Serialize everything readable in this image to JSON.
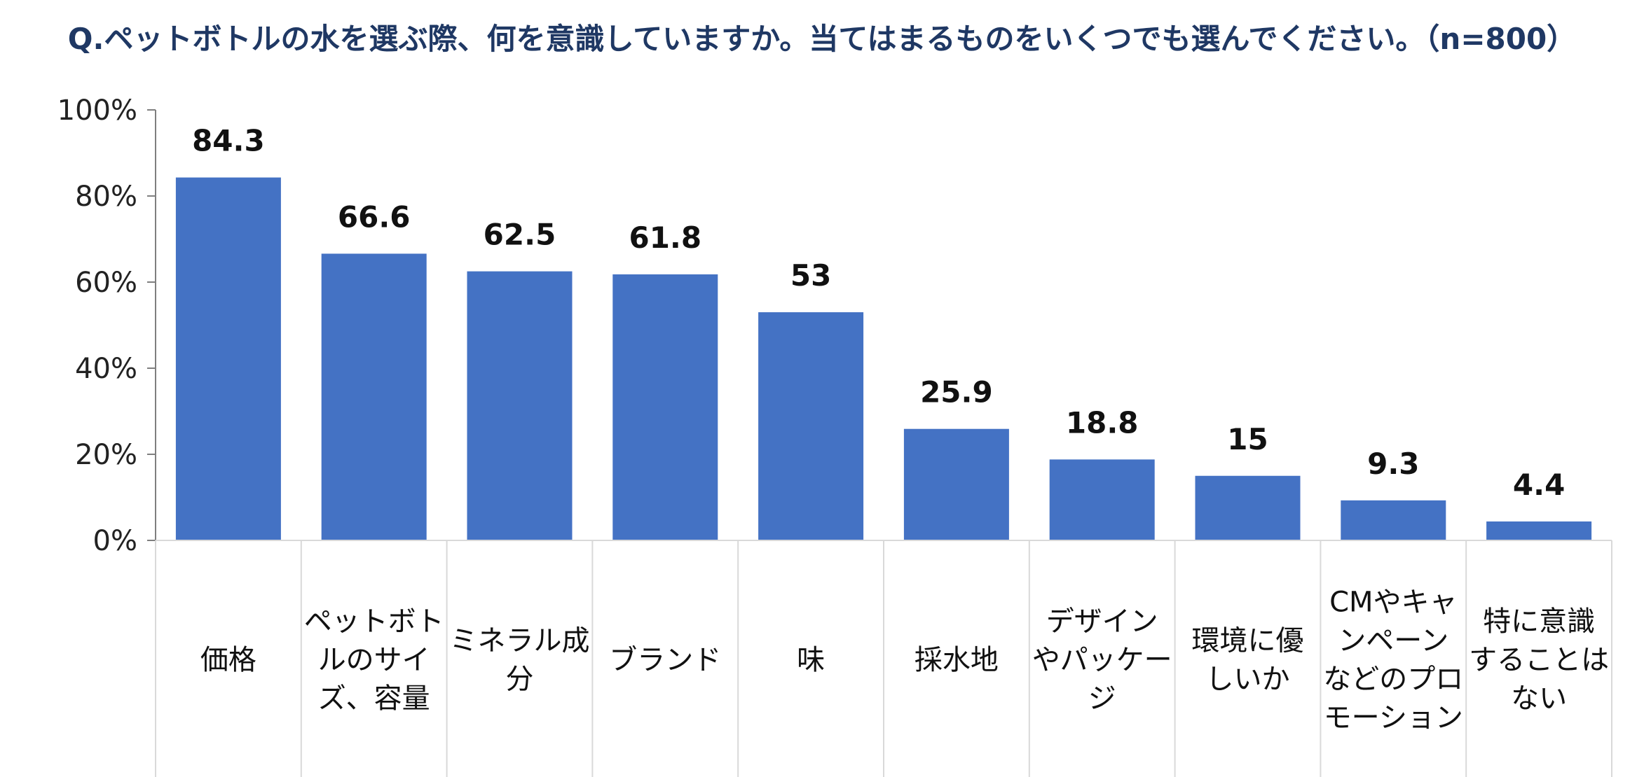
{
  "chart_data": {
    "type": "bar",
    "title": "Q.ペットボトルの水を選ぶ際、何を意識していますか。当てはまるものをいくつでも選んでください。（n=800）",
    "categories": [
      [
        "価格"
      ],
      [
        "ペットボト",
        "ルのサイ",
        "ズ、容量"
      ],
      [
        "ミネラル成",
        "分"
      ],
      [
        "ブランド"
      ],
      [
        "味"
      ],
      [
        "採水地"
      ],
      [
        "デザイン",
        "やパッケー",
        "ジ"
      ],
      [
        "環境に優",
        "しいか"
      ],
      [
        "CMやキャ",
        "ンペーン",
        "などのプロ",
        "モーション"
      ],
      [
        "特に意識",
        "することは",
        "ない"
      ]
    ],
    "values": [
      84.3,
      66.6,
      62.5,
      61.8,
      53,
      25.9,
      18.8,
      15,
      9.3,
      4.4
    ],
    "value_labels": [
      "84.3",
      "66.6",
      "62.5",
      "61.8",
      "53",
      "25.9",
      "18.8",
      "15",
      "9.3",
      "4.4"
    ],
    "ylim": [
      0,
      100
    ],
    "yticks": [
      "0%",
      "20%",
      "40%",
      "60%",
      "80%",
      "100%"
    ],
    "ytick_values": [
      0,
      20,
      40,
      60,
      80,
      100
    ],
    "xlabel": "",
    "ylabel": "",
    "grid": false,
    "colors": {
      "bar": "#4472c4",
      "axis": "#7f7f7f",
      "separator": "#d9d9d9",
      "title": "#1f3864"
    }
  }
}
